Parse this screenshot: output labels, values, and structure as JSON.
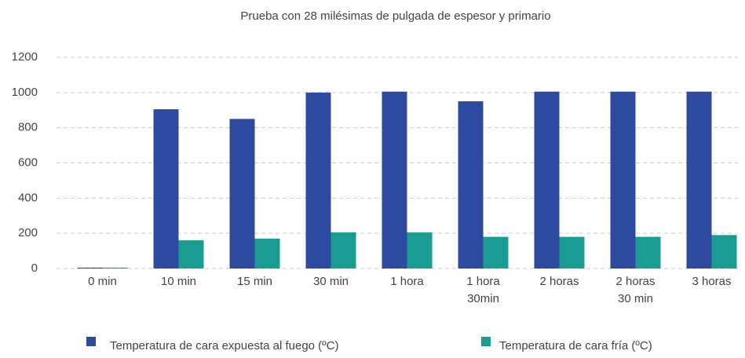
{
  "chart_data": {
    "type": "bar",
    "title": "Prueba con 28 milésimas de pulgada de espesor y primario",
    "categories": [
      "0 min",
      "10 min",
      "15 min",
      "30 min",
      "1 hora",
      "1 hora\n30min",
      "2 horas",
      "2 horas\n30 min",
      "3 horas"
    ],
    "series": [
      {
        "name": "Temperatura de cara expuesta al fuego (ºC)",
        "color": "#2e4a9e",
        "values": [
          5,
          905,
          850,
          1000,
          1005,
          950,
          1005,
          1005,
          1005
        ]
      },
      {
        "name": "Temperatura de cara fría (ºC)",
        "color": "#1a9c92",
        "values": [
          5,
          160,
          170,
          205,
          205,
          180,
          180,
          180,
          190
        ]
      }
    ],
    "ylim": [
      0,
      1200
    ],
    "yticks": [
      0,
      200,
      400,
      600,
      800,
      1000,
      1200
    ],
    "grid": true,
    "legend": "bottom"
  }
}
